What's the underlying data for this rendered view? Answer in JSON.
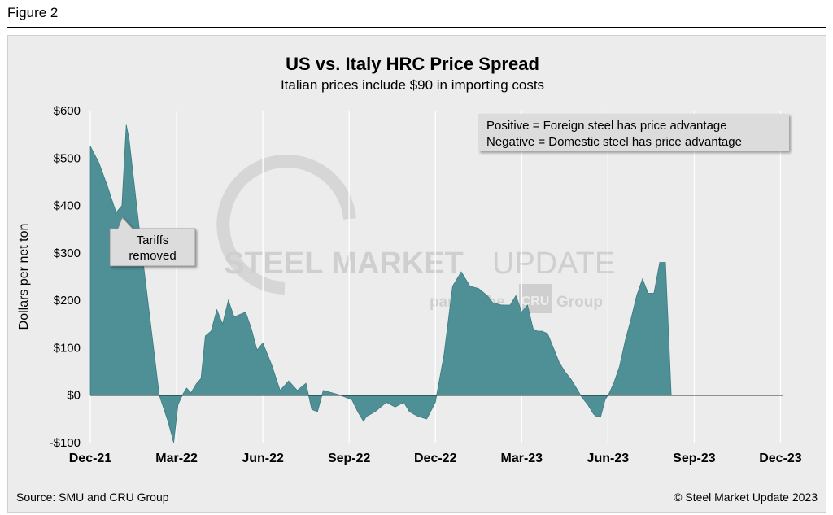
{
  "figure_label": "Figure 2",
  "footer": {
    "source": "Source: SMU and CRU Group",
    "copyright": "© Steel Market Update 2023"
  },
  "watermark": {
    "line1a": "STEEL MARKET",
    "line1b": "UPDATE",
    "line2a": "part of the",
    "line2b": "CRU",
    "line2c": "Group"
  },
  "colors": {
    "area_fill": "#4f9097",
    "area_stroke": "#3b7b82",
    "panel_bg": "#ececec",
    "legend_bg": "#dcdcdc"
  },
  "chart_data": {
    "type": "area",
    "title": "US vs. Italy HRC Price Spread",
    "subtitle": "Italian prices include $90 in importing costs",
    "xlabel": "",
    "ylabel": "Dollars per net ton",
    "ylim": [
      -100,
      600
    ],
    "yticks": [
      -100,
      0,
      100,
      200,
      300,
      400,
      500,
      600
    ],
    "ytick_labels": [
      "-$100",
      "$0",
      "$100",
      "$200",
      "$300",
      "$400",
      "$500",
      "$600"
    ],
    "xlim": [
      0,
      24.1
    ],
    "xticks": [
      0,
      3,
      6,
      9,
      12,
      15,
      18,
      21,
      24
    ],
    "xtick_labels": [
      "Dec-21",
      "Mar-22",
      "Jun-22",
      "Sep-22",
      "Dec-22",
      "Mar-23",
      "Jun-23",
      "Sep-23",
      "Dec-23"
    ],
    "legend": {
      "line1": "Positive = Foreign steel has price advantage",
      "line2": "Negative = Domestic steel has price advantage"
    },
    "annotation": {
      "line1": "Tariffs",
      "line2": "removed",
      "x": 1.0,
      "y": 385
    },
    "series": [
      {
        "name": "Spread",
        "x": [
          0,
          0.3,
          0.6,
          0.9,
          1.1,
          1.25,
          1.35,
          1.5,
          1.8,
          2.1,
          2.4,
          2.7,
          2.9,
          3.05,
          3.2,
          3.35,
          3.5,
          3.7,
          3.85,
          4.0,
          4.2,
          4.4,
          4.6,
          4.8,
          5.0,
          5.2,
          5.4,
          5.6,
          5.8,
          6.0,
          6.3,
          6.6,
          6.9,
          7.2,
          7.5,
          7.7,
          7.9,
          8.1,
          8.4,
          8.7,
          8.9,
          9.1,
          9.3,
          9.5,
          9.6,
          9.75,
          9.9,
          10.3,
          10.6,
          10.9,
          11.1,
          11.4,
          11.7,
          12.0,
          12.3,
          12.6,
          12.9,
          13.2,
          13.5,
          13.8,
          14.0,
          14.3,
          14.6,
          14.8,
          15.0,
          15.2,
          15.4,
          15.55,
          15.7,
          15.9,
          16.1,
          16.3,
          16.5,
          16.7,
          16.9,
          17.1,
          17.3,
          17.5,
          17.6,
          17.75,
          17.9,
          18.05,
          18.2,
          18.4,
          18.6,
          18.8,
          19.0,
          19.2,
          19.4,
          19.6,
          19.8,
          20.0,
          20.2,
          20.4,
          20.6,
          20.8,
          21.0,
          21.2,
          21.4,
          21.6,
          21.8,
          22.0,
          22.3,
          22.6,
          22.9,
          23.2,
          23.5,
          23.7,
          23.9,
          24.05,
          24.1
        ],
        "values": [
          525,
          490,
          440,
          385,
          400,
          570,
          540,
          460,
          300,
          150,
          0,
          -55,
          -100,
          -20,
          0,
          15,
          5,
          25,
          35,
          125,
          135,
          180,
          150,
          200,
          165,
          170,
          175,
          140,
          95,
          110,
          65,
          10,
          30,
          10,
          25,
          -30,
          -35,
          10,
          5,
          0,
          -5,
          -10,
          -35,
          -55,
          -45,
          -40,
          -35,
          -15,
          -25,
          -15,
          -35,
          -45,
          -50,
          -15,
          85,
          230,
          260,
          230,
          225,
          210,
          195,
          190,
          190,
          210,
          175,
          190,
          140,
          135,
          135,
          130,
          100,
          70,
          50,
          35,
          15,
          -5,
          -20,
          -40,
          -45,
          -45,
          -10,
          5,
          25,
          60,
          115,
          160,
          210,
          245,
          215,
          215,
          280,
          280,
          0,
          0,
          0,
          0,
          0,
          0,
          0,
          0,
          0,
          0,
          0,
          0,
          0,
          0,
          0,
          0,
          0,
          0,
          0
        ]
      }
    ]
  }
}
